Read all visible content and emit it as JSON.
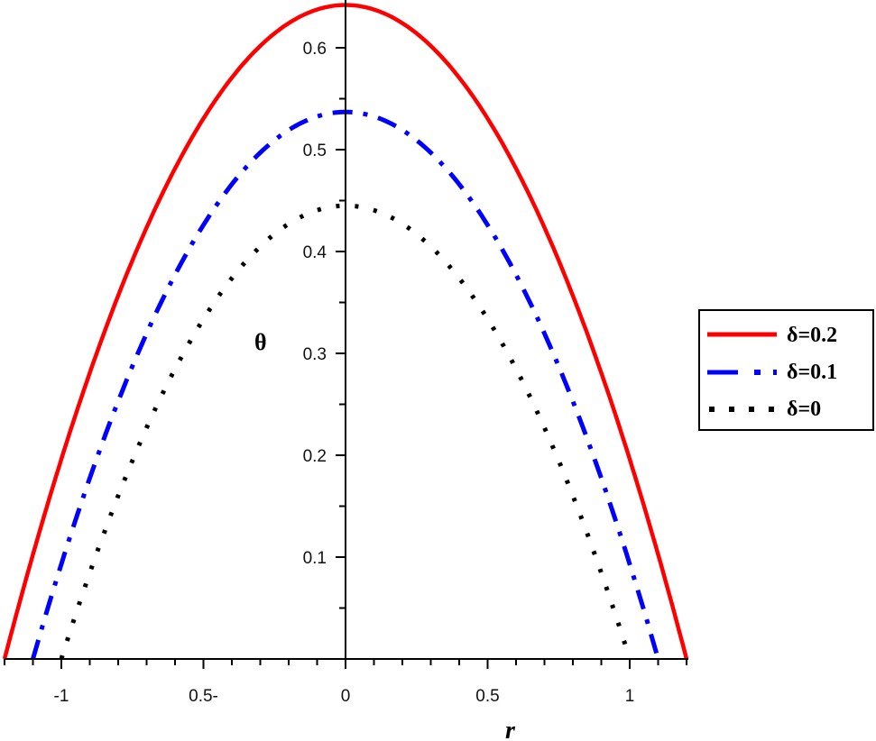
{
  "chart_data": {
    "type": "line",
    "title": "",
    "xlabel": "r",
    "ylabel": "θ",
    "xlim": [
      -1.2,
      1.2
    ],
    "ylim": [
      0,
      0.645
    ],
    "grid": false,
    "legend_position": "right",
    "x_tick_labels": [
      "-1",
      "0.5-",
      "0",
      "0.5",
      "1"
    ],
    "x_tick_values": [
      -1,
      -0.5,
      0,
      0.5,
      1
    ],
    "y_tick_labels": [
      "0.1",
      "0.2",
      "0.3",
      "0.4",
      "0.5",
      "0.6"
    ],
    "y_tick_values": [
      0.1,
      0.2,
      0.3,
      0.4,
      0.5,
      0.6
    ],
    "series": [
      {
        "name": "δ=0.2",
        "color": "#ff0000",
        "style": "solid",
        "x": [
          -1.2,
          -1.0,
          -0.8,
          -0.6,
          -0.5,
          -0.4,
          -0.2,
          0,
          0.2,
          0.4,
          0.5,
          0.6,
          0.8,
          1.0,
          1.2
        ],
        "values": [
          0.0,
          0.196,
          0.357,
          0.482,
          0.53,
          0.571,
          0.624,
          0.642,
          0.624,
          0.571,
          0.53,
          0.482,
          0.357,
          0.196,
          0.0
        ]
      },
      {
        "name": "δ=0.1",
        "color": "#0000ff",
        "style": "dashdot",
        "x": [
          -1.1,
          -1.0,
          -0.8,
          -0.6,
          -0.5,
          -0.4,
          -0.2,
          0,
          0.2,
          0.4,
          0.5,
          0.6,
          0.8,
          1.0,
          1.1
        ],
        "values": [
          0.0,
          0.093,
          0.253,
          0.377,
          0.426,
          0.466,
          0.519,
          0.537,
          0.519,
          0.466,
          0.426,
          0.377,
          0.253,
          0.093,
          0.0
        ]
      },
      {
        "name": "δ=0",
        "color": "#000000",
        "style": "dotted",
        "x": [
          -1.0,
          -0.8,
          -0.6,
          -0.5,
          -0.4,
          -0.2,
          0,
          0.2,
          0.4,
          0.5,
          0.6,
          0.8,
          1.0
        ],
        "values": [
          0.0,
          0.16,
          0.285,
          0.334,
          0.374,
          0.427,
          0.445,
          0.427,
          0.374,
          0.334,
          0.285,
          0.16,
          0.0
        ]
      }
    ],
    "curve_model": {
      "δ=0.2": {
        "peak": 0.642,
        "half_width": 1.2
      },
      "δ=0.1": {
        "peak": 0.537,
        "half_width": 1.1
      },
      "δ=0": {
        "peak": 0.445,
        "half_width": 1.0
      }
    }
  },
  "legend": {
    "items": [
      {
        "label": "δ=0.2",
        "color": "#ff0000",
        "style": "solid"
      },
      {
        "label": "δ=0.1",
        "color": "#0000ff",
        "style": "dashdot"
      },
      {
        "label": "δ=0",
        "color": "#000000",
        "style": "dotted"
      }
    ]
  },
  "axes": {
    "x_title": "r",
    "y_title": "θ"
  }
}
